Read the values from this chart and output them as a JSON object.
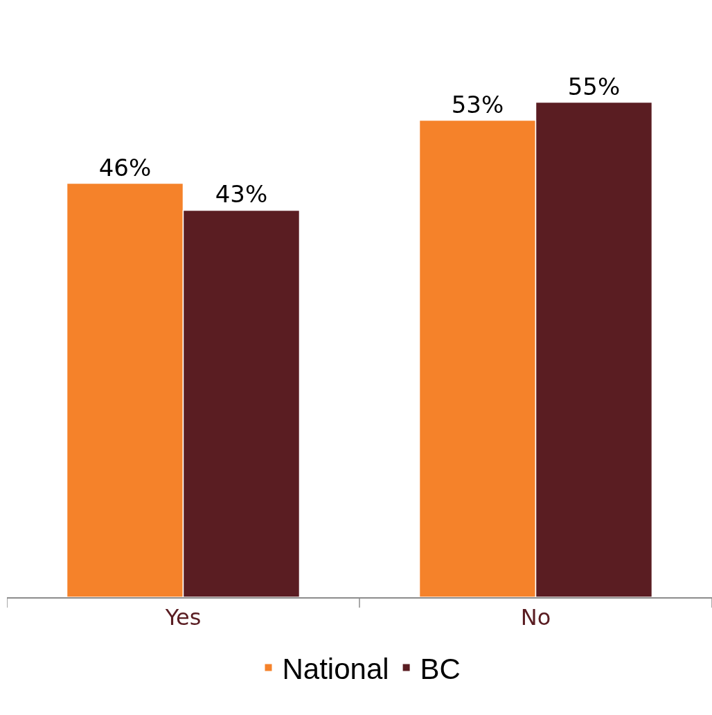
{
  "chart_data": {
    "type": "bar",
    "categories": [
      "Yes",
      "No"
    ],
    "series": [
      {
        "name": "National",
        "color": "#f5822a",
        "values": [
          46,
          53
        ],
        "value_labels": [
          "46%",
          "53%"
        ]
      },
      {
        "name": "BC",
        "color": "#5a1d22",
        "values": [
          43,
          55
        ],
        "value_labels": [
          "43%",
          "55%"
        ]
      }
    ],
    "legend": "bottom"
  }
}
